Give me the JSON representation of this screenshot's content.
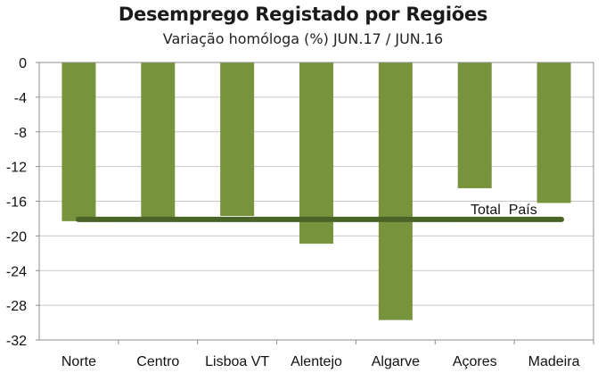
{
  "chart_data": {
    "type": "bar",
    "title": "Desemprego Registado por Regiões",
    "subtitle": "Variação homóloga (%)   JUN.17 / JUN.16",
    "categories": [
      "Norte",
      "Centro",
      "Lisboa VT",
      "Alentejo",
      "Algarve",
      "Açores",
      "Madeira"
    ],
    "values": [
      -18.3,
      -17.9,
      -17.7,
      -20.9,
      -29.7,
      -14.5,
      -16.2
    ],
    "ylim": [
      -32,
      0
    ],
    "yticks": [
      0,
      -4,
      -8,
      -12,
      -16,
      -20,
      -24,
      -28,
      -32
    ],
    "grid": true,
    "reference_line": {
      "label": "Total  País",
      "value": -18.3
    },
    "colors": {
      "bar": "#77933c",
      "reference_line": "#4a6428",
      "grid": "#c8c8c8",
      "axis": "#8c8c8c"
    }
  }
}
